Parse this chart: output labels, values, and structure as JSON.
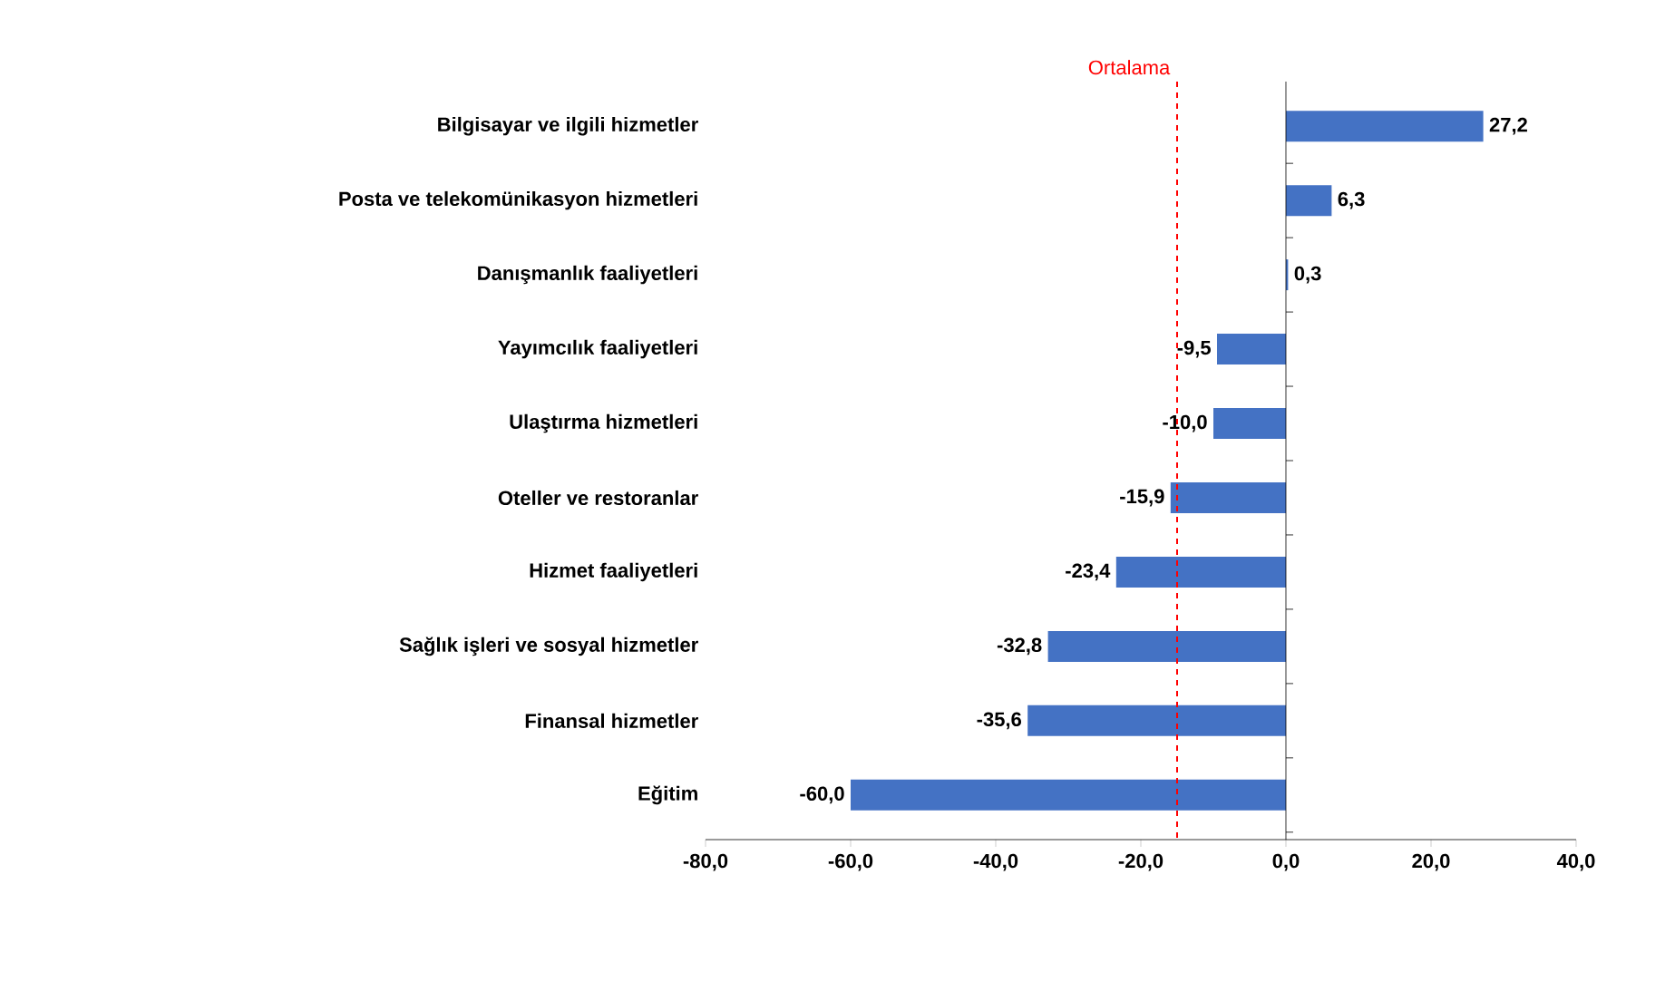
{
  "chart_data": {
    "type": "bar",
    "orientation": "horizontal",
    "categories": [
      "Bilgisayar ve ilgili hizmetler",
      "Posta ve telekomünikasyon hizmetleri",
      "Danışmanlık faaliyetleri",
      "Yayımcılık faaliyetleri",
      "Ulaştırma hizmetleri",
      "Oteller ve restoranlar",
      "Hizmet faaliyetleri",
      "Sağlık işleri ve sosyal hizmetler",
      "Finansal hizmetler",
      "Eğitim"
    ],
    "values": [
      27.2,
      6.3,
      0.3,
      -9.5,
      -10.0,
      -15.9,
      -23.4,
      -32.8,
      -35.6,
      -60.0
    ],
    "value_labels": [
      "27,2",
      "6,3",
      "0,3",
      "-9,5",
      "-10,0",
      "-15,9",
      "-23,4",
      "-32,8",
      "-35,6",
      "-60,0"
    ],
    "color": "#4472c4",
    "xlim": [
      -80,
      40
    ],
    "xticks": [
      {
        "value": -80,
        "label": "-80,0"
      },
      {
        "value": -60,
        "label": "-60,0"
      },
      {
        "value": -40,
        "label": "-40,0"
      },
      {
        "value": -20,
        "label": "-20,0"
      },
      {
        "value": 0,
        "label": "0,0"
      },
      {
        "value": 20,
        "label": "20,0"
      },
      {
        "value": 40,
        "label": "40,0"
      }
    ],
    "ref_lines": [
      {
        "axis": "x",
        "value": -15,
        "label": "Ortalama",
        "color": "#ff0000",
        "line_style": "dashed"
      }
    ]
  }
}
